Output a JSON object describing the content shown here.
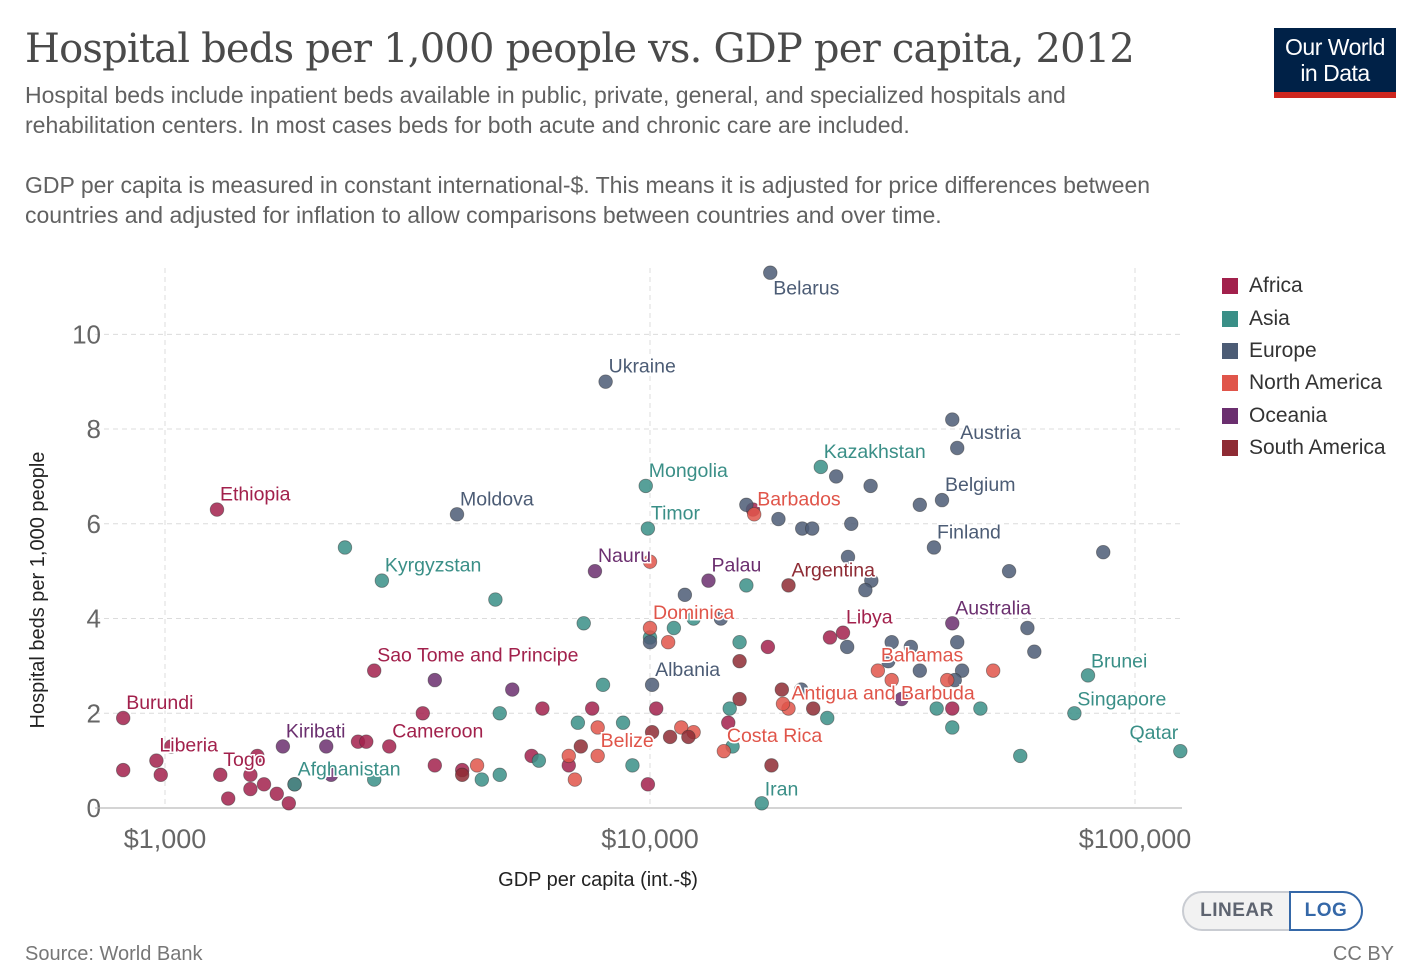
{
  "header": {
    "title": "Hospital beds per 1,000 people vs. GDP per capita, 2012",
    "subtitle_1": "Hospital beds include inpatient beds available in public, private, general, and specialized hospitals and rehabilitation centers. In most cases beds for both acute and chronic care are included.",
    "subtitle_2": "GDP per capita is measured in constant international-$. This means it is adjusted for price differences between countries and adjusted for inflation to allow comparisons between countries and over time."
  },
  "logo": {
    "line1": "Our World",
    "line2": "in Data"
  },
  "footer": {
    "source": "Source: World Bank",
    "license": "CC BY"
  },
  "toggle": {
    "linear": "LINEAR",
    "log": "LOG",
    "selected": "LOG"
  },
  "colors": {
    "Africa": "#a2214c",
    "Asia": "#3a8f87",
    "Europe": "#4c5c75",
    "North America": "#e0554a",
    "Oceania": "#6b2f6f",
    "South America": "#8e2b34"
  },
  "chart_data": {
    "type": "scatter",
    "xlabel": "GDP per capita (int.-$)",
    "ylabel": "Hospital beds per 1,000 people",
    "xscale": "log",
    "xlim": [
      800,
      125000
    ],
    "ylim": [
      0,
      11.4
    ],
    "xticks": [
      {
        "v": 1000,
        "label": "$1,000"
      },
      {
        "v": 10000,
        "label": "$10,000"
      },
      {
        "v": 100000,
        "label": "$100,000"
      }
    ],
    "yticks": [
      {
        "v": 0,
        "label": "0"
      },
      {
        "v": 2,
        "label": "2"
      },
      {
        "v": 4,
        "label": "4"
      },
      {
        "v": 6,
        "label": "6"
      },
      {
        "v": 8,
        "label": "8"
      },
      {
        "v": 10,
        "label": "10"
      }
    ],
    "grid": true,
    "legend_position": "right",
    "series": [
      {
        "name": "Africa",
        "points": [
          {
            "x": 1280,
            "y": 6.3,
            "label": "Ethiopia"
          },
          {
            "x": 820,
            "y": 1.9,
            "label": "Burundi"
          },
          {
            "x": 960,
            "y": 1.0,
            "label": "Liberia"
          },
          {
            "x": 820,
            "y": 0.8
          },
          {
            "x": 2700,
            "y": 2.9,
            "label": "Sao Tome and Principe"
          },
          {
            "x": 1300,
            "y": 0.7,
            "label": "Togo"
          },
          {
            "x": 2900,
            "y": 1.3,
            "label": "Cameroon"
          },
          {
            "x": 16300,
            "y": 6.3
          },
          {
            "x": 23500,
            "y": 3.6
          },
          {
            "x": 25000,
            "y": 3.7,
            "label": "Libya"
          },
          {
            "x": 980,
            "y": 0.7
          },
          {
            "x": 1030,
            "y": 1.3
          },
          {
            "x": 1350,
            "y": 0.2
          },
          {
            "x": 1500,
            "y": 0.4
          },
          {
            "x": 1500,
            "y": 0.7
          },
          {
            "x": 1550,
            "y": 1.1
          },
          {
            "x": 1600,
            "y": 0.5
          },
          {
            "x": 1700,
            "y": 0.3
          },
          {
            "x": 1800,
            "y": 0.1
          },
          {
            "x": 1850,
            "y": 0.5
          },
          {
            "x": 2500,
            "y": 1.4
          },
          {
            "x": 2600,
            "y": 1.4
          },
          {
            "x": 3400,
            "y": 2.0
          },
          {
            "x": 3600,
            "y": 0.9
          },
          {
            "x": 4100,
            "y": 0.8
          },
          {
            "x": 5700,
            "y": 1.1
          },
          {
            "x": 6000,
            "y": 2.1
          },
          {
            "x": 6800,
            "y": 0.9
          },
          {
            "x": 7600,
            "y": 2.1
          },
          {
            "x": 9900,
            "y": 0.5
          },
          {
            "x": 10300,
            "y": 2.1
          },
          {
            "x": 14500,
            "y": 1.8
          },
          {
            "x": 17500,
            "y": 3.4
          },
          {
            "x": 42000,
            "y": 2.1
          }
        ]
      },
      {
        "name": "Asia",
        "points": [
          {
            "x": 2800,
            "y": 4.8,
            "label": "Kyrgyzstan"
          },
          {
            "x": 1850,
            "y": 0.5,
            "label": "Afghanistan"
          },
          {
            "x": 9800,
            "y": 6.8,
            "label": "Mongolia"
          },
          {
            "x": 9900,
            "y": 5.9,
            "label": "Timor"
          },
          {
            "x": 22500,
            "y": 7.2,
            "label": "Kazakhstan"
          },
          {
            "x": 17000,
            "y": 0.1,
            "label": "Iran"
          },
          {
            "x": 80000,
            "y": 2.8,
            "label": "Brunei"
          },
          {
            "x": 75000,
            "y": 2.0,
            "label": "Singapore"
          },
          {
            "x": 124000,
            "y": 1.2,
            "label": "Qatar"
          },
          {
            "x": 2350,
            "y": 5.5
          },
          {
            "x": 2700,
            "y": 0.6
          },
          {
            "x": 4500,
            "y": 0.6
          },
          {
            "x": 4900,
            "y": 2.0
          },
          {
            "x": 4800,
            "y": 4.4
          },
          {
            "x": 4900,
            "y": 0.7
          },
          {
            "x": 5900,
            "y": 1.0
          },
          {
            "x": 7300,
            "y": 3.9
          },
          {
            "x": 7100,
            "y": 1.8
          },
          {
            "x": 8000,
            "y": 2.6
          },
          {
            "x": 8800,
            "y": 1.8
          },
          {
            "x": 9200,
            "y": 0.9
          },
          {
            "x": 10000,
            "y": 3.6
          },
          {
            "x": 11200,
            "y": 3.8
          },
          {
            "x": 12300,
            "y": 4.0
          },
          {
            "x": 14600,
            "y": 2.1
          },
          {
            "x": 14800,
            "y": 1.3
          },
          {
            "x": 15300,
            "y": 3.5
          },
          {
            "x": 15800,
            "y": 4.7
          },
          {
            "x": 23200,
            "y": 1.9
          },
          {
            "x": 39000,
            "y": 2.1
          },
          {
            "x": 42000,
            "y": 1.7
          },
          {
            "x": 48000,
            "y": 2.1
          },
          {
            "x": 58000,
            "y": 1.1
          }
        ]
      },
      {
        "name": "Europe",
        "points": [
          {
            "x": 17700,
            "y": 11.3,
            "label": "Belarus"
          },
          {
            "x": 8100,
            "y": 9.0,
            "label": "Ukraine"
          },
          {
            "x": 4000,
            "y": 6.2,
            "label": "Moldova"
          },
          {
            "x": 43000,
            "y": 7.6,
            "label": "Austria"
          },
          {
            "x": 40000,
            "y": 6.5,
            "label": "Belgium"
          },
          {
            "x": 38500,
            "y": 5.5,
            "label": "Finland"
          },
          {
            "x": 10100,
            "y": 2.6,
            "label": "Albania"
          },
          {
            "x": 42000,
            "y": 8.2
          },
          {
            "x": 86000,
            "y": 5.4
          },
          {
            "x": 24200,
            "y": 7.0
          },
          {
            "x": 28500,
            "y": 6.8
          },
          {
            "x": 36000,
            "y": 6.4
          },
          {
            "x": 15800,
            "y": 6.4
          },
          {
            "x": 18400,
            "y": 6.1
          },
          {
            "x": 20600,
            "y": 5.9
          },
          {
            "x": 21600,
            "y": 5.9
          },
          {
            "x": 26000,
            "y": 6.0
          },
          {
            "x": 25600,
            "y": 5.3
          },
          {
            "x": 28600,
            "y": 4.8
          },
          {
            "x": 27800,
            "y": 4.6
          },
          {
            "x": 55000,
            "y": 5.0
          },
          {
            "x": 11800,
            "y": 4.5
          },
          {
            "x": 14000,
            "y": 4.0
          },
          {
            "x": 10000,
            "y": 3.5
          },
          {
            "x": 31500,
            "y": 3.5
          },
          {
            "x": 34500,
            "y": 3.4
          },
          {
            "x": 43000,
            "y": 3.5
          },
          {
            "x": 60000,
            "y": 3.8
          },
          {
            "x": 62000,
            "y": 3.3
          },
          {
            "x": 25500,
            "y": 3.4
          },
          {
            "x": 31000,
            "y": 3.1
          },
          {
            "x": 44000,
            "y": 2.9
          },
          {
            "x": 36000,
            "y": 2.9
          },
          {
            "x": 42500,
            "y": 2.7
          },
          {
            "x": 20500,
            "y": 2.5
          }
        ]
      },
      {
        "name": "North America",
        "points": [
          {
            "x": 16400,
            "y": 6.2,
            "label": "Barbados"
          },
          {
            "x": 10000,
            "y": 3.8,
            "label": "Dominica"
          },
          {
            "x": 29500,
            "y": 2.9,
            "label": "Bahamas"
          },
          {
            "x": 19300,
            "y": 2.1,
            "label": "Antigua and Barbuda"
          },
          {
            "x": 14200,
            "y": 1.2,
            "label": "Costa Rica"
          },
          {
            "x": 7800,
            "y": 1.1,
            "label": "Belize"
          },
          {
            "x": 10000,
            "y": 5.2
          },
          {
            "x": 10900,
            "y": 3.5
          },
          {
            "x": 4400,
            "y": 0.9
          },
          {
            "x": 6800,
            "y": 1.1
          },
          {
            "x": 7000,
            "y": 0.6
          },
          {
            "x": 7800,
            "y": 1.7
          },
          {
            "x": 11600,
            "y": 1.7
          },
          {
            "x": 12300,
            "y": 1.6
          },
          {
            "x": 18800,
            "y": 2.2
          },
          {
            "x": 31500,
            "y": 2.7
          },
          {
            "x": 41000,
            "y": 2.7
          },
          {
            "x": 51000,
            "y": 2.9
          }
        ]
      },
      {
        "name": "Oceania",
        "points": [
          {
            "x": 7700,
            "y": 5.0,
            "label": "Nauru"
          },
          {
            "x": 13200,
            "y": 4.8,
            "label": "Palau"
          },
          {
            "x": 42000,
            "y": 3.9,
            "label": "Australia"
          },
          {
            "x": 1750,
            "y": 1.3,
            "label": "Kiribati"
          },
          {
            "x": 3600,
            "y": 2.7
          },
          {
            "x": 5200,
            "y": 2.5
          },
          {
            "x": 2150,
            "y": 1.3
          },
          {
            "x": 2200,
            "y": 0.7
          },
          {
            "x": 33000,
            "y": 2.3
          }
        ]
      },
      {
        "name": "South America",
        "points": [
          {
            "x": 19300,
            "y": 4.7,
            "label": "Argentina"
          },
          {
            "x": 15300,
            "y": 3.1
          },
          {
            "x": 15300,
            "y": 2.3
          },
          {
            "x": 18700,
            "y": 2.5
          },
          {
            "x": 21700,
            "y": 2.1
          },
          {
            "x": 10100,
            "y": 1.6
          },
          {
            "x": 11000,
            "y": 1.5
          },
          {
            "x": 12000,
            "y": 1.5
          },
          {
            "x": 7200,
            "y": 1.3
          },
          {
            "x": 17800,
            "y": 0.9
          },
          {
            "x": 4100,
            "y": 0.7
          }
        ]
      }
    ]
  }
}
